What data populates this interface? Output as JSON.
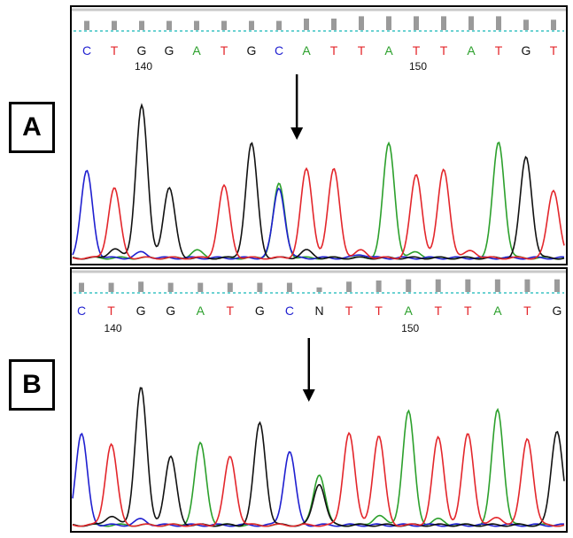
{
  "panel_labels": [
    "A",
    "B"
  ],
  "colors": {
    "A": "#2ca02c",
    "C": "#1f1fd0",
    "G": "#111111",
    "T": "#e3262b",
    "N": "#111111",
    "dotted": "#3cc3c3",
    "quality": "#9a9a9a"
  },
  "chart_data": [
    {
      "type": "line",
      "panel": "A",
      "bases": [
        "C",
        "T",
        "G",
        "G",
        "A",
        "T",
        "G",
        "C",
        "A",
        "T",
        "T",
        "A",
        "T",
        "T",
        "A",
        "T",
        "G",
        "T"
      ],
      "position_ticks": [
        {
          "label": "140",
          "base_index": 2
        },
        {
          "label": "150",
          "base_index": 12
        }
      ],
      "quality": [
        8,
        8,
        8,
        8,
        8,
        8,
        8,
        8,
        10,
        10,
        12,
        12,
        12,
        12,
        12,
        12,
        9,
        9
      ],
      "marker_base_index": 8,
      "series": [
        {
          "name": "A",
          "peaks": [
            {
              "x": 7,
              "h": 0.4
            },
            {
              "x": 11,
              "h": 0.62
            },
            {
              "x": 15,
              "h": 0.63
            },
            {
              "x": 4,
              "h": 0.04
            },
            {
              "x": 12,
              "h": 0.03
            }
          ]
        },
        {
          "name": "C",
          "peaks": [
            {
              "x": 0,
              "h": 0.47
            },
            {
              "x": 7,
              "h": 0.38
            },
            {
              "x": 2,
              "h": 0.03
            },
            {
              "x": 10,
              "h": 0.02
            }
          ]
        },
        {
          "name": "G",
          "peaks": [
            {
              "x": 2,
              "h": 0.83
            },
            {
              "x": 3,
              "h": 0.38
            },
            {
              "x": 6,
              "h": 0.62
            },
            {
              "x": 16,
              "h": 0.55
            },
            {
              "x": 1,
              "h": 0.05
            },
            {
              "x": 8,
              "h": 0.04
            }
          ]
        },
        {
          "name": "T",
          "peaks": [
            {
              "x": 1,
              "h": 0.38
            },
            {
              "x": 5,
              "h": 0.39
            },
            {
              "x": 8,
              "h": 0.48
            },
            {
              "x": 9,
              "h": 0.48
            },
            {
              "x": 10,
              "h": 0.04
            },
            {
              "x": 12,
              "h": 0.45
            },
            {
              "x": 13,
              "h": 0.48
            },
            {
              "x": 14,
              "h": 0.04
            },
            {
              "x": 17,
              "h": 0.37
            }
          ]
        }
      ]
    },
    {
      "type": "line",
      "panel": "B",
      "bases": [
        "C",
        "T",
        "G",
        "G",
        "A",
        "T",
        "G",
        "C",
        "N",
        "T",
        "T",
        "A",
        "T",
        "T",
        "A",
        "T",
        "G"
      ],
      "position_ticks": [
        {
          "label": "140",
          "base_index": 1
        },
        {
          "label": "150",
          "base_index": 11
        }
      ],
      "quality": [
        8,
        8,
        9,
        8,
        8,
        8,
        8,
        8,
        4,
        9,
        10,
        11,
        11,
        11,
        11,
        11,
        11
      ],
      "marker_base_index": 8,
      "series": [
        {
          "name": "A",
          "peaks": [
            {
              "x": 4,
              "h": 0.43
            },
            {
              "x": 8,
              "h": 0.27
            },
            {
              "x": 11,
              "h": 0.6
            },
            {
              "x": 14,
              "h": 0.61
            },
            {
              "x": 10,
              "h": 0.05
            },
            {
              "x": 12,
              "h": 0.03
            }
          ]
        },
        {
          "name": "C",
          "peaks": [
            {
              "x": 0,
              "h": 0.48
            },
            {
              "x": 7,
              "h": 0.39
            },
            {
              "x": 2,
              "h": 0.03
            }
          ]
        },
        {
          "name": "G",
          "peaks": [
            {
              "x": 2,
              "h": 0.73
            },
            {
              "x": 3,
              "h": 0.36
            },
            {
              "x": 6,
              "h": 0.54
            },
            {
              "x": 8,
              "h": 0.22
            },
            {
              "x": 16,
              "h": 0.5
            },
            {
              "x": 1,
              "h": 0.05
            }
          ]
        },
        {
          "name": "T",
          "peaks": [
            {
              "x": 1,
              "h": 0.43
            },
            {
              "x": 5,
              "h": 0.36
            },
            {
              "x": 9,
              "h": 0.49
            },
            {
              "x": 10,
              "h": 0.47
            },
            {
              "x": 12,
              "h": 0.46
            },
            {
              "x": 13,
              "h": 0.48
            },
            {
              "x": 15,
              "h": 0.46
            },
            {
              "x": 14,
              "h": 0.04
            }
          ]
        }
      ]
    }
  ]
}
